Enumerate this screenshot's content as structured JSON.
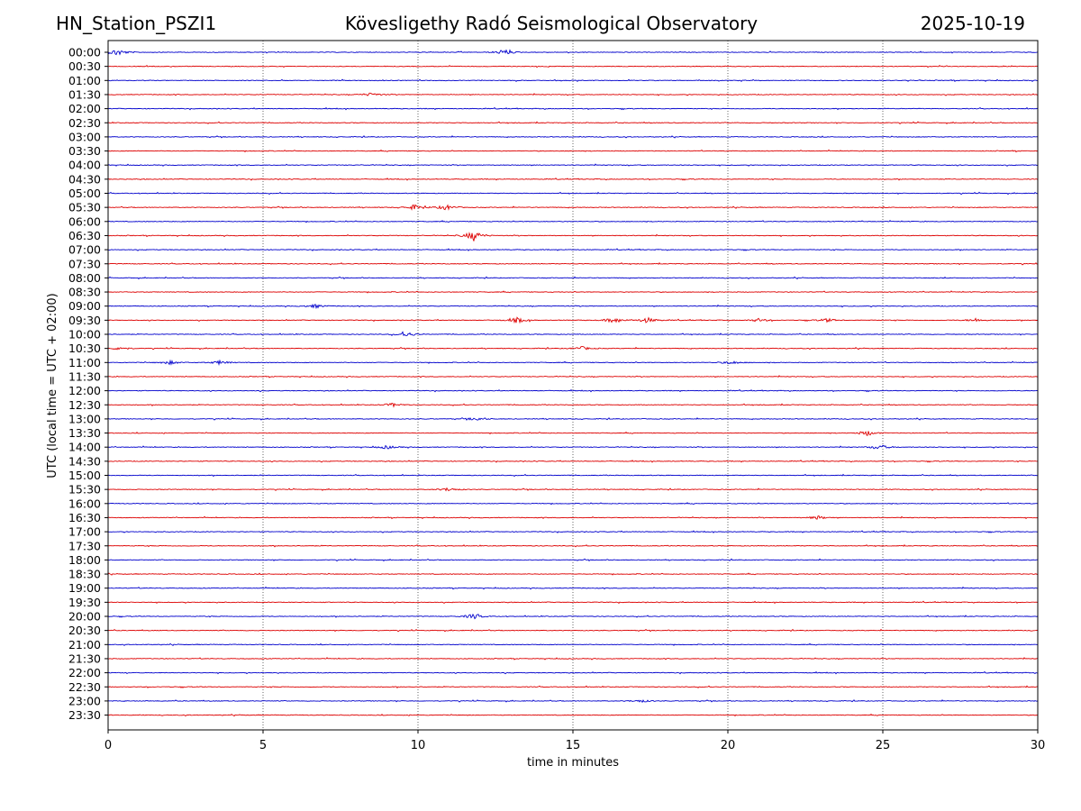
{
  "header": {
    "station": "HN_Station_PSZI1",
    "observatory": "Kövesligethy Radó Seismological Observatory",
    "date": "2025-10-19"
  },
  "chart_data": {
    "type": "line",
    "title": "Kövesligethy Radó Seismological Observatory",
    "xlabel": "time in minutes",
    "ylabel": "UTC (local time = UTC + 02:00)",
    "xlim": [
      0,
      30
    ],
    "x_ticks": [
      "0",
      "5",
      "10",
      "15",
      "20",
      "25",
      "30"
    ],
    "grid": "vertical dotted at each x tick",
    "series_colors": [
      "#0000cc",
      "#dd0000"
    ],
    "rows": [
      "00:00",
      "00:30",
      "01:00",
      "01:30",
      "02:00",
      "02:30",
      "03:00",
      "03:30",
      "04:00",
      "04:30",
      "05:00",
      "05:30",
      "06:00",
      "06:30",
      "07:00",
      "07:30",
      "08:00",
      "08:30",
      "09:00",
      "09:30",
      "10:00",
      "10:30",
      "11:00",
      "11:30",
      "12:00",
      "12:30",
      "13:00",
      "13:30",
      "14:00",
      "14:30",
      "15:00",
      "15:30",
      "16:00",
      "16:30",
      "17:00",
      "17:30",
      "18:00",
      "18:30",
      "19:00",
      "19:30",
      "20:00",
      "20:30",
      "21:00",
      "21:30",
      "22:00",
      "22:30",
      "23:00",
      "23:30"
    ],
    "events": [
      {
        "row": "00:00",
        "minute": 0.3,
        "amplitude": 4
      },
      {
        "row": "00:00",
        "minute": 12.8,
        "amplitude": 3
      },
      {
        "row": "01:30",
        "minute": 8.5,
        "amplitude": 2
      },
      {
        "row": "05:30",
        "minute": 9.9,
        "amplitude": 3
      },
      {
        "row": "05:30",
        "minute": 10.9,
        "amplitude": 3
      },
      {
        "row": "06:30",
        "minute": 11.8,
        "amplitude": 6
      },
      {
        "row": "09:00",
        "minute": 6.7,
        "amplitude": 2
      },
      {
        "row": "09:30",
        "minute": 13.2,
        "amplitude": 3
      },
      {
        "row": "09:30",
        "minute": 16.3,
        "amplitude": 3
      },
      {
        "row": "09:30",
        "minute": 17.4,
        "amplitude": 3
      },
      {
        "row": "09:30",
        "minute": 21.0,
        "amplitude": 2
      },
      {
        "row": "09:30",
        "minute": 23.2,
        "amplitude": 2
      },
      {
        "row": "09:30",
        "minute": 28.0,
        "amplitude": 2
      },
      {
        "row": "10:00",
        "minute": 9.6,
        "amplitude": 3
      },
      {
        "row": "10:30",
        "minute": 0.4,
        "amplitude": 2
      },
      {
        "row": "10:30",
        "minute": 15.3,
        "amplitude": 2
      },
      {
        "row": "11:00",
        "minute": 2.0,
        "amplitude": 2
      },
      {
        "row": "11:00",
        "minute": 3.6,
        "amplitude": 2
      },
      {
        "row": "11:00",
        "minute": 20.1,
        "amplitude": 2
      },
      {
        "row": "12:30",
        "minute": 9.2,
        "amplitude": 2
      },
      {
        "row": "13:00",
        "minute": 11.9,
        "amplitude": 2
      },
      {
        "row": "13:30",
        "minute": 24.5,
        "amplitude": 3
      },
      {
        "row": "14:00",
        "minute": 9.0,
        "amplitude": 2
      },
      {
        "row": "14:00",
        "minute": 24.9,
        "amplitude": 3
      },
      {
        "row": "15:30",
        "minute": 11.0,
        "amplitude": 2
      },
      {
        "row": "16:30",
        "minute": 22.9,
        "amplitude": 2
      },
      {
        "row": "20:00",
        "minute": 11.8,
        "amplitude": 3
      },
      {
        "row": "23:00",
        "minute": 17.2,
        "amplitude": 1.5
      }
    ]
  }
}
